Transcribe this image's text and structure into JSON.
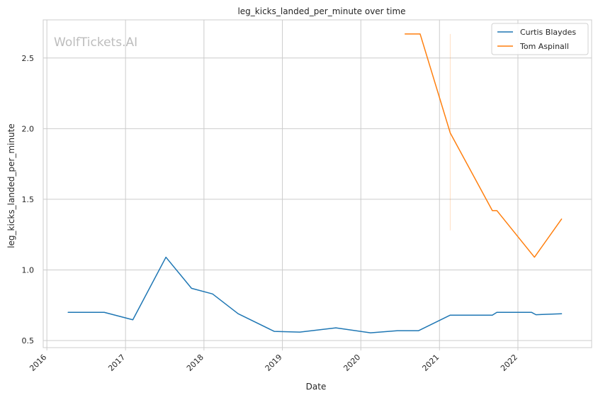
{
  "chart_data": {
    "type": "line",
    "title": "leg_kicks_landed_per_minute over time",
    "xlabel": "Date",
    "ylabel": "leg_kicks_landed_per_minute",
    "watermark": "WolfTickets.AI",
    "x_ticks": [
      "2016",
      "2017",
      "2018",
      "2019",
      "2020",
      "2021",
      "2022"
    ],
    "y_ticks": [
      "0.5",
      "1.0",
      "1.5",
      "2.0",
      "2.5"
    ],
    "xlim": [
      "2015-12-15",
      "2022-12-10"
    ],
    "ylim": [
      0.45,
      2.77
    ],
    "grid": true,
    "legend": "top-right",
    "series": [
      {
        "name": "Curtis Blaydes",
        "color": "#1f77b4",
        "points": [
          [
            "2016-04-09",
            0.7
          ],
          [
            "2016-09-24",
            0.7
          ],
          [
            "2017-02-04",
            0.647
          ],
          [
            "2017-07-08",
            1.09
          ],
          [
            "2017-11-04",
            0.87
          ],
          [
            "2018-02-10",
            0.83
          ],
          [
            "2018-06-09",
            0.69
          ],
          [
            "2018-11-24",
            0.565
          ],
          [
            "2019-03-23",
            0.56
          ],
          [
            "2019-09-07",
            0.59
          ],
          [
            "2020-02-15",
            0.555
          ],
          [
            "2020-06-20",
            0.57
          ],
          [
            "2020-09-26",
            0.57
          ],
          [
            "2021-02-20",
            0.68
          ],
          [
            "2021-09-04",
            0.68
          ],
          [
            "2021-09-25",
            0.7
          ],
          [
            "2022-03-05",
            0.7
          ],
          [
            "2022-03-26",
            0.683
          ],
          [
            "2022-07-23",
            0.69
          ]
        ]
      },
      {
        "name": "Tom Aspinall",
        "color": "#ff7f0e",
        "points": [
          [
            "2020-07-25",
            2.67
          ],
          [
            "2020-10-03",
            2.67
          ],
          [
            "2021-02-20",
            1.97
          ],
          [
            "2021-09-04",
            1.42
          ],
          [
            "2021-09-25",
            1.42
          ],
          [
            "2022-03-19",
            1.09
          ],
          [
            "2022-07-23",
            1.36
          ]
        ]
      }
    ],
    "vertical_marker": {
      "date": "2021-02-20",
      "y_range": [
        1.28,
        2.67
      ],
      "color": "#ff7f0e"
    }
  }
}
